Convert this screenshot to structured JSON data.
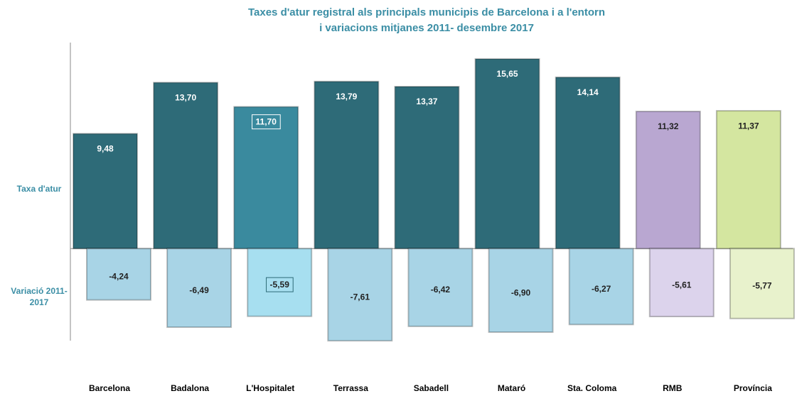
{
  "chart_data": {
    "type": "bar",
    "title": "Taxes d'atur registral als principals municipis de Barcelona i a l'entorn",
    "subtitle": "i variacions mitjanes 2011- desembre 2017",
    "categories": [
      "Barcelona",
      "Badalona",
      "L'Hospitalet",
      "Terrassa",
      "Sabadell",
      "Mataró",
      "Sta. Coloma",
      "RMB",
      "Província"
    ],
    "series": [
      {
        "name": "Taxa d'atur",
        "colors": [
          "#2e6b78",
          "#2e6b78",
          "#3a8a9e",
          "#2e6b78",
          "#2e6b78",
          "#2e6b78",
          "#2e6b78",
          "#b9a7d1",
          "#d4e6a0"
        ],
        "values": [
          9.48,
          13.7,
          11.7,
          13.79,
          13.37,
          15.65,
          14.14,
          11.32,
          11.37
        ],
        "value_labels": [
          "9,48",
          "13,70",
          "11,70",
          "13,79",
          "13,37",
          "15,65",
          "14,14",
          "11,32",
          "11,37"
        ]
      },
      {
        "name": "Variació 2011-2017",
        "colors": [
          "#a8d4e6",
          "#a8d4e6",
          "#a7dff0",
          "#a8d4e6",
          "#a8d4e6",
          "#a8d4e6",
          "#a8d4e6",
          "#dcd3ec",
          "#e8f2cc"
        ],
        "values": [
          -4.24,
          -6.49,
          -5.59,
          -7.61,
          -6.42,
          -6.9,
          -6.27,
          -5.61,
          -5.77
        ],
        "value_labels": [
          "-4,24",
          "-6,49",
          "-5,59",
          "-7,61",
          "-6,42",
          "-6,90",
          "-6,27",
          "-5,61",
          "-5,77"
        ]
      }
    ],
    "ylim": [
      -7.6,
      17
    ]
  }
}
